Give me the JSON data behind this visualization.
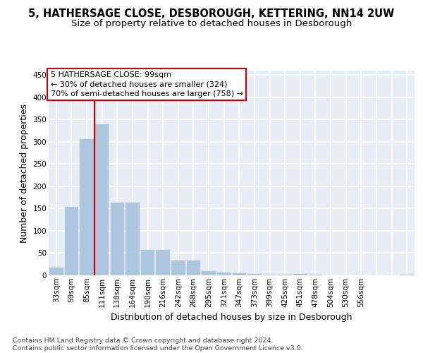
{
  "title1": "5, HATHERSAGE CLOSE, DESBOROUGH, KETTERING, NN14 2UW",
  "title2": "Size of property relative to detached houses in Desborough",
  "xlabel": "Distribution of detached houses by size in Desborough",
  "ylabel": "Number of detached properties",
  "bar_values": [
    17,
    154,
    306,
    340,
    164,
    163,
    57,
    57,
    34,
    34,
    10,
    7,
    5,
    3,
    2,
    2,
    3,
    1,
    0,
    0,
    0,
    0,
    0,
    2
  ],
  "bar_labels": [
    "33sqm",
    "59sqm",
    "85sqm",
    "111sqm",
    "138sqm",
    "164sqm",
    "190sqm",
    "216sqm",
    "242sqm",
    "268sqm",
    "295sqm",
    "321sqm",
    "347sqm",
    "373sqm",
    "399sqm",
    "425sqm",
    "451sqm",
    "478sqm",
    "504sqm",
    "530sqm",
    "556sqm",
    "",
    "",
    ""
  ],
  "bar_color": "#aec6de",
  "bar_edgecolor": "#aec6de",
  "vline_color": "#cc0000",
  "annotation_text": "5 HATHERSAGE CLOSE: 99sqm\n← 30% of detached houses are smaller (324)\n70% of semi-detached houses are larger (758) →",
  "annotation_box_color": "white",
  "annotation_box_edgecolor": "#cc0000",
  "ylim": [
    0,
    460
  ],
  "yticks": [
    0,
    50,
    100,
    150,
    200,
    250,
    300,
    350,
    400,
    450
  ],
  "background_color": "#e8eef5",
  "grid_color": "white",
  "footer_text": "Contains HM Land Registry data © Crown copyright and database right 2024.\nContains public sector information licensed under the Open Government Licence v3.0.",
  "title_fontsize": 10.5,
  "subtitle_fontsize": 9.5,
  "tick_fontsize": 7.5,
  "label_fontsize": 9
}
